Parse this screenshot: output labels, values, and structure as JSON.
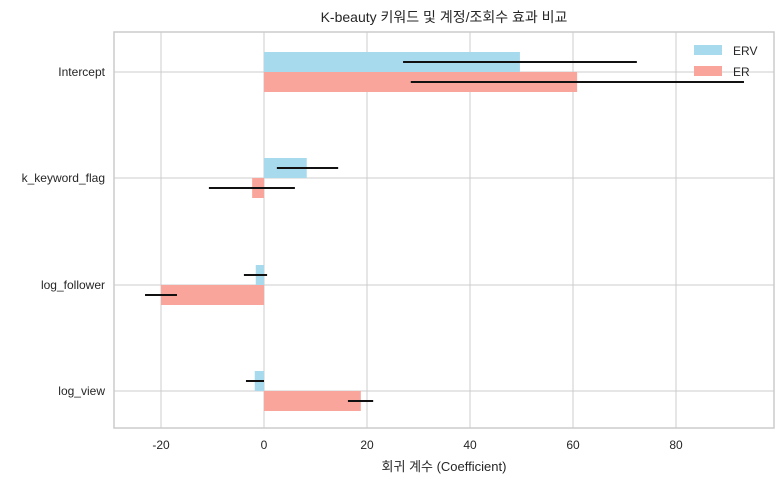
{
  "chart_data": {
    "type": "bar",
    "orientation": "horizontal",
    "title": "K-beauty 키워드 및 계정/조회수 효과 비교",
    "xlabel": "회귀 계수 (Coefficient)",
    "ylabel": "",
    "xlim": [
      -29,
      99
    ],
    "xticks": [
      -20,
      0,
      20,
      40,
      60,
      80
    ],
    "grid": true,
    "legend_position": "upper right",
    "categories": [
      "Intercept",
      "k_keyword_flag",
      "log_follower",
      "log_view"
    ],
    "series": [
      {
        "name": "ERV",
        "color": "#a8daed",
        "values": [
          49.7,
          8.3,
          -1.6,
          -1.8
        ],
        "error_low": [
          27.0,
          2.5,
          -3.9,
          -3.5
        ],
        "error_high": [
          72.4,
          14.4,
          0.6,
          0.0
        ]
      },
      {
        "name": "ER",
        "color": "#f9a59b",
        "values": [
          60.8,
          -2.3,
          -20.0,
          18.8
        ],
        "error_low": [
          28.5,
          -10.7,
          -23.1,
          16.3
        ],
        "error_high": [
          93.2,
          6.0,
          -16.9,
          21.2
        ]
      }
    ]
  },
  "colors": {
    "grid": "#cccccc",
    "frame": "#cccccc",
    "errorbar": "#111111"
  }
}
